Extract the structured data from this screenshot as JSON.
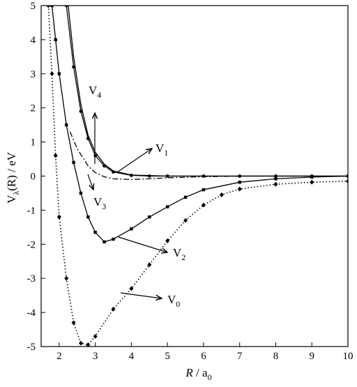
{
  "chart_data": {
    "type": "line",
    "xlabel": {
      "main": "R",
      "rest": " / a",
      "sub": "0"
    },
    "ylabel": {
      "main": "V",
      "sub": "λ",
      "rest": "(R) / eV"
    },
    "xlim": [
      1.5,
      10
    ],
    "xticks": [
      2,
      3,
      4,
      5,
      6,
      7,
      8,
      9,
      10
    ],
    "ylim": [
      -5,
      5
    ],
    "yticks": [
      -5,
      -4,
      -3,
      -2,
      -1,
      0,
      1,
      2,
      3,
      4,
      5
    ],
    "series": [
      {
        "name": "V0",
        "color": "#000000",
        "style": "dotted",
        "marker": "diamond",
        "x": [
          1.7,
          1.8,
          1.9,
          2.0,
          2.2,
          2.4,
          2.6,
          2.8,
          3.0,
          3.5,
          4.0,
          4.5,
          5.0,
          5.5,
          6.0,
          6.5,
          7.0,
          8.0,
          9.0,
          10.0
        ],
        "values": [
          5.0,
          3.0,
          0.6,
          -1.2,
          -3.0,
          -4.3,
          -4.9,
          -4.95,
          -4.7,
          -3.9,
          -3.3,
          -2.6,
          -1.9,
          -1.3,
          -0.85,
          -0.55,
          -0.38,
          -0.24,
          -0.18,
          -0.15
        ]
      },
      {
        "name": "V1",
        "color": "#000000",
        "style": "solid",
        "marker": "dot",
        "x": [
          2.2,
          2.4,
          2.6,
          2.8,
          3.0,
          3.25,
          3.5,
          4.0,
          4.5,
          5.0,
          6.0,
          7.0,
          8.0,
          9.0,
          10.0
        ],
        "values": [
          5.0,
          3.2,
          1.9,
          1.1,
          0.6,
          0.3,
          0.12,
          0.02,
          0.0,
          0.0,
          0.0,
          0.0,
          0.0,
          0.0,
          0.0
        ]
      },
      {
        "name": "V2",
        "color": "#000000",
        "style": "solid",
        "marker": "square",
        "x": [
          1.8,
          1.9,
          2.0,
          2.2,
          2.4,
          2.6,
          2.8,
          3.0,
          3.25,
          3.5,
          4.0,
          4.5,
          5.0,
          5.5,
          6.0,
          7.0,
          8.0,
          9.0,
          10.0
        ],
        "values": [
          5.0,
          4.0,
          3.0,
          1.5,
          0.4,
          -0.5,
          -1.2,
          -1.65,
          -1.93,
          -1.85,
          -1.55,
          -1.2,
          -0.9,
          -0.62,
          -0.4,
          -0.18,
          -0.08,
          -0.03,
          0.0
        ]
      },
      {
        "name": "V3",
        "color": "#000000",
        "style": "dashdot",
        "marker": "none",
        "x": [
          2.3,
          2.5,
          2.8,
          3.0,
          3.25,
          3.5,
          4.0,
          4.5,
          5.0,
          6.0,
          7.0,
          10.0
        ],
        "values": [
          1.3,
          0.8,
          0.3,
          0.1,
          -0.02,
          -0.08,
          -0.1,
          -0.08,
          -0.05,
          -0.02,
          0.0,
          0.0
        ]
      },
      {
        "name": "V4",
        "color": "#000000",
        "style": "solid",
        "marker": "none",
        "x": [
          2.25,
          2.4,
          2.6,
          2.8,
          3.0,
          3.25,
          3.5,
          4.0,
          5.0,
          10.0
        ],
        "values": [
          5.0,
          3.5,
          2.1,
          1.2,
          0.7,
          0.35,
          0.15,
          0.03,
          0.0,
          0.0
        ]
      }
    ],
    "annotations": [
      {
        "main": "V",
        "sub": "4"
      },
      {
        "main": "V",
        "sub": "1"
      },
      {
        "main": "V",
        "sub": "3"
      },
      {
        "main": "V",
        "sub": "2"
      },
      {
        "main": "V",
        "sub": "0"
      }
    ]
  }
}
